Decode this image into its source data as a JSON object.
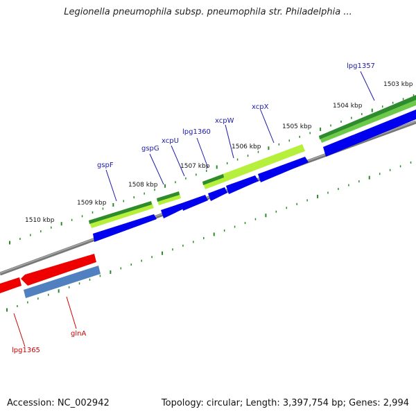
{
  "title": "Legionella pneumophila subsp. pneumophila str. Philadelphia ...",
  "footer": {
    "accession": "Accession: NC_002942",
    "topology": "Topology: circular; Length: 3,397,754 bp; Genes: 2,994"
  },
  "colors": {
    "forward_gene": "#0000ee",
    "reverse_gene": "#ee0000",
    "forward_label": "#1a1aa8",
    "reverse_label": "#cc0000",
    "backbone": "#777777",
    "ticks": "#2a8a2a",
    "orf_dark": "#2e8b2e",
    "orf_light": "#b6f03c",
    "reverse_blue": "#5080c0"
  },
  "scale_ticks": [
    {
      "label": "1510 kbp"
    },
    {
      "label": "1509 kbp"
    },
    {
      "label": "1508 kbp"
    },
    {
      "label": "1507 kbp"
    },
    {
      "label": "1506 kbp"
    },
    {
      "label": "1505 kbp"
    },
    {
      "label": "1504 kbp"
    },
    {
      "label": "1503 kbp"
    }
  ],
  "forward_genes": [
    {
      "label": "gspF"
    },
    {
      "label": "gspG"
    },
    {
      "label": "xcpU"
    },
    {
      "label": "lpg1360"
    },
    {
      "label": "xcpW"
    },
    {
      "label": "xcpX"
    },
    {
      "label": "lpg1357"
    }
  ],
  "reverse_genes": [
    {
      "label": "lpg1365"
    },
    {
      "label": "glnA"
    }
  ]
}
